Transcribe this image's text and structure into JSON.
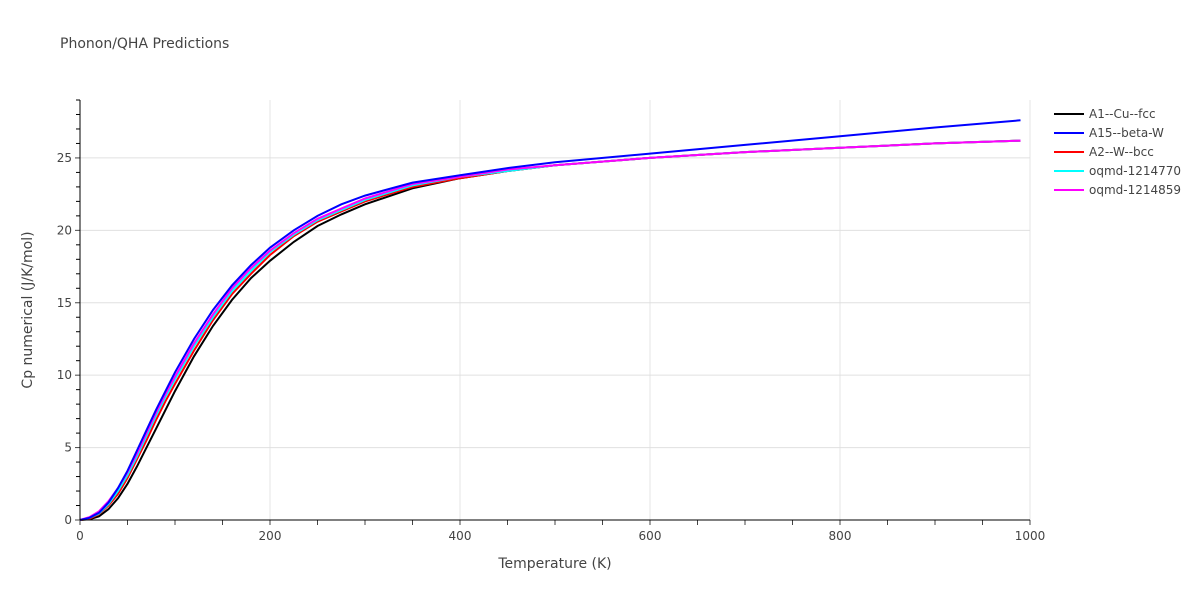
{
  "title": "Phonon/QHA Predictions",
  "chart_data": {
    "type": "line",
    "title": "Phonon/QHA Predictions",
    "xlabel": "Temperature (K)",
    "ylabel": "Cp numerical (J/K/mol)",
    "xlim": [
      0,
      1000
    ],
    "ylim": [
      0,
      29
    ],
    "xticks": [
      0,
      200,
      400,
      600,
      800,
      1000
    ],
    "yticks": [
      0,
      5,
      10,
      15,
      20,
      25
    ],
    "grid": true,
    "legend_position": "right",
    "x": [
      0,
      10,
      20,
      30,
      40,
      50,
      60,
      70,
      80,
      90,
      100,
      120,
      140,
      160,
      180,
      200,
      225,
      250,
      275,
      300,
      350,
      400,
      450,
      500,
      600,
      700,
      800,
      900,
      990
    ],
    "series": [
      {
        "name": "A1--Cu--fcc",
        "color": "#000000",
        "values": [
          0,
          0.05,
          0.25,
          0.75,
          1.5,
          2.5,
          3.7,
          5.0,
          6.3,
          7.6,
          8.9,
          11.3,
          13.4,
          15.2,
          16.7,
          17.9,
          19.2,
          20.3,
          21.1,
          21.8,
          22.9,
          23.6,
          24.1,
          24.5,
          25.0,
          25.4,
          25.7,
          26.0,
          26.2
        ]
      },
      {
        "name": "A15--beta-W",
        "color": "#0000ff",
        "values": [
          0,
          0.15,
          0.5,
          1.2,
          2.2,
          3.4,
          4.8,
          6.2,
          7.6,
          8.9,
          10.2,
          12.5,
          14.5,
          16.2,
          17.6,
          18.8,
          20.0,
          21.0,
          21.8,
          22.4,
          23.3,
          23.8,
          24.3,
          24.7,
          25.3,
          25.9,
          26.5,
          27.1,
          27.6
        ]
      },
      {
        "name": "A2--W--bcc",
        "color": "#ff0000",
        "values": [
          0,
          0.1,
          0.4,
          1.0,
          1.8,
          2.9,
          4.2,
          5.5,
          6.9,
          8.2,
          9.4,
          11.7,
          13.8,
          15.6,
          17.0,
          18.3,
          19.6,
          20.6,
          21.3,
          22.0,
          23.0,
          23.6,
          24.1,
          24.5,
          25.0,
          25.4,
          25.7,
          26.0,
          26.2
        ]
      },
      {
        "name": "oqmd-1214770",
        "color": "#00ffff",
        "values": [
          0,
          0.15,
          0.45,
          1.1,
          2.0,
          3.1,
          4.4,
          5.8,
          7.2,
          8.5,
          9.7,
          12.0,
          14.0,
          15.8,
          17.2,
          18.5,
          19.7,
          20.7,
          21.4,
          22.1,
          23.1,
          23.7,
          24.1,
          24.5,
          25.0,
          25.4,
          25.7,
          26.0,
          26.2
        ]
      },
      {
        "name": "oqmd-1214859",
        "color": "#ff00ff",
        "values": [
          0,
          0.2,
          0.6,
          1.3,
          2.2,
          3.3,
          4.6,
          6.0,
          7.4,
          8.7,
          9.9,
          12.2,
          14.2,
          16.0,
          17.4,
          18.6,
          19.8,
          20.8,
          21.5,
          22.2,
          23.2,
          23.7,
          24.2,
          24.5,
          25.0,
          25.4,
          25.7,
          26.0,
          26.2
        ]
      }
    ]
  }
}
